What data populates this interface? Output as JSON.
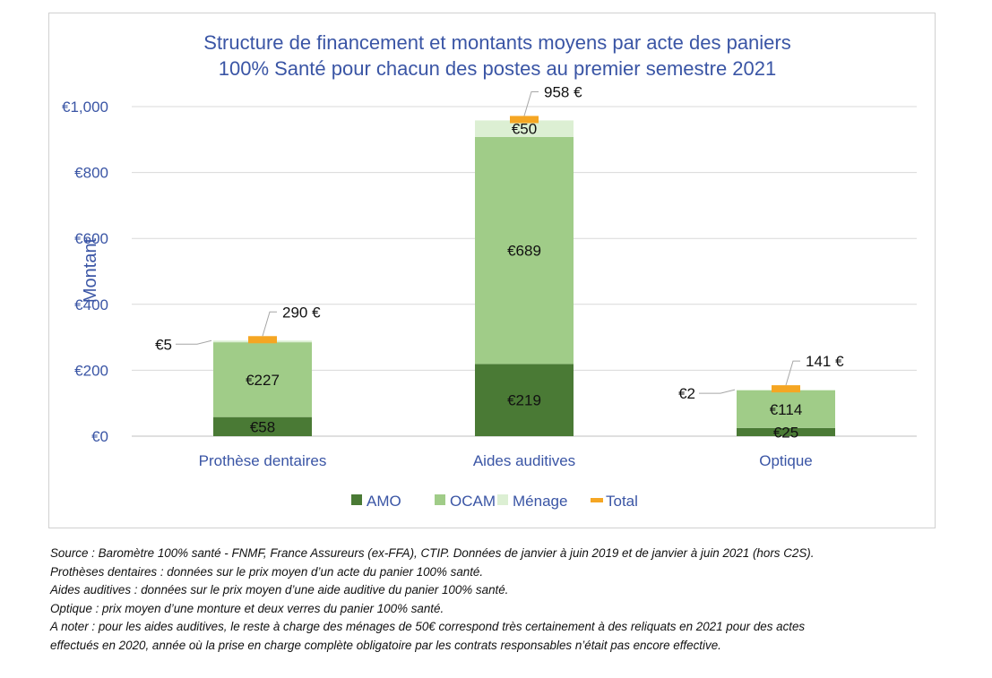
{
  "chart_data": {
    "type": "bar",
    "stacked": true,
    "title": [
      "Structure de financement et montants moyens par acte des paniers",
      "100% Santé pour chacun des postes au premier semestre 2021"
    ],
    "ylabel": "Montant",
    "ylim": [
      0,
      1000
    ],
    "yticks": [
      0,
      200,
      400,
      600,
      800,
      1000
    ],
    "ytick_labels": [
      "€0",
      "€200",
      "€400",
      "€600",
      "€800",
      "€1,000"
    ],
    "categories": [
      "Prothèse dentaires",
      "Aides auditives",
      "Optique"
    ],
    "series": [
      {
        "name": "AMO",
        "color": "#4a7a35",
        "values": [
          58,
          219,
          25
        ],
        "labels": [
          "€58",
          "€219",
          "€25"
        ]
      },
      {
        "name": "OCAM",
        "color": "#a0cc88",
        "values": [
          227,
          689,
          114
        ],
        "labels": [
          "€227",
          "€689",
          "€114"
        ]
      },
      {
        "name": "Ménage",
        "color": "#dcefd3",
        "values": [
          5,
          50,
          2
        ],
        "labels": [
          "€5",
          "€50",
          "€2"
        ]
      }
    ],
    "total": {
      "name": "Total",
      "color": "#f5a623",
      "values": [
        290,
        958,
        141
      ],
      "labels": [
        "290 €",
        "958 €",
        "141 €"
      ]
    },
    "grid": true,
    "legend_position": "bottom"
  },
  "notes": [
    "Source : Baromètre 100% santé - FNMF, France Assureurs (ex-FFA), CTIP. Données de janvier à juin 2019 et de janvier à juin 2021 (hors C2S).",
    "Prothèses dentaires : données sur le prix moyen d’un acte du panier 100% santé.",
    "Aides auditives : données sur le prix moyen d’une aide auditive du panier 100% santé.",
    "Optique : prix moyen d’une monture et deux verres du panier 100% santé.",
    "A noter : pour les aides auditives, le reste à charge des ménages de 50€ correspond très certainement à des reliquats en 2021 pour des actes",
    "effectués en 2020, année où la prise en charge complète obligatoire par les contrats responsables n’était pas encore effective."
  ]
}
